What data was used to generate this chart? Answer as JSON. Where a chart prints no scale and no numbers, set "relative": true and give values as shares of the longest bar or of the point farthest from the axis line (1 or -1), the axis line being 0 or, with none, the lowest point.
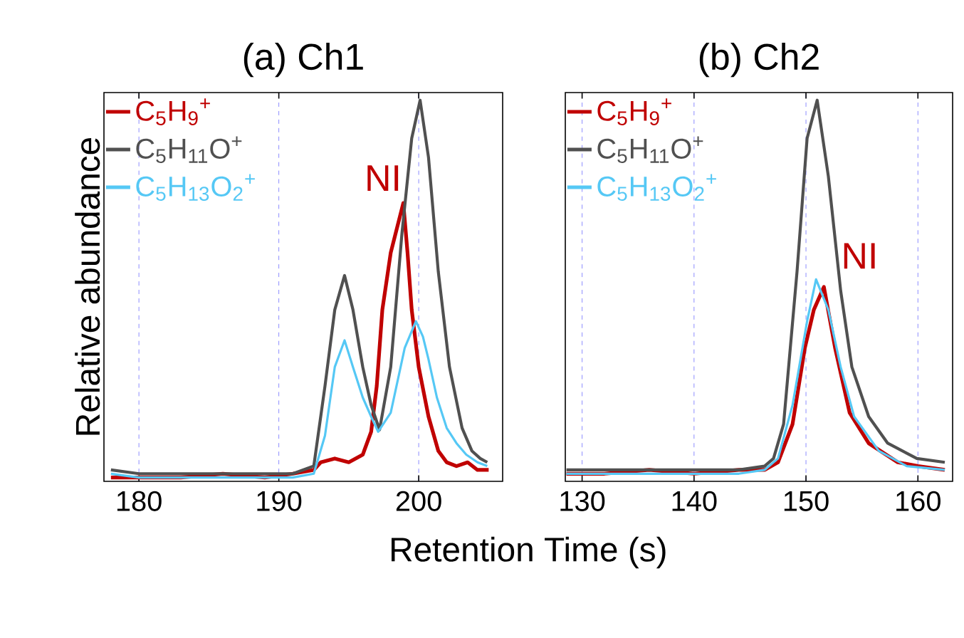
{
  "chart_data": [
    {
      "type": "line",
      "title": "(a) Ch1",
      "xlabel": "Retention Time (s)",
      "ylabel": "Relative abundance",
      "relative": true,
      "xlim": [
        177.5,
        206
      ],
      "xticks": [
        180,
        190,
        200
      ],
      "grid": "x",
      "legend": "top left",
      "tick_labels": "x",
      "annotations": [
        "NI"
      ],
      "series": [
        {
          "name": "C$_{5}$H$_{9}$$^{+}$",
          "color": "#c00000",
          "x": [
            178,
            180,
            183,
            186,
            189,
            191,
            192.5,
            193,
            194,
            195,
            196,
            196.6,
            197,
            197.4,
            198,
            198.9,
            199.2,
            199.5,
            200,
            200.7,
            201.4,
            202,
            202.7,
            203.5,
            204.2,
            205
          ],
          "values": [
            0.01,
            0.01,
            0.01,
            0.02,
            0.01,
            0.02,
            0.03,
            0.05,
            0.06,
            0.05,
            0.07,
            0.13,
            0.25,
            0.45,
            0.6,
            0.73,
            0.6,
            0.45,
            0.3,
            0.17,
            0.08,
            0.05,
            0.04,
            0.05,
            0.03,
            0.03
          ]
        },
        {
          "name": "C$_{5}$H$_{11}$O$^{+}$",
          "color": "#505050",
          "x": [
            178,
            180,
            183,
            186,
            189,
            191,
            192.5,
            193.3,
            194,
            194.7,
            195.3,
            196,
            196.6,
            197.2,
            198,
            198.8,
            199.5,
            200.1,
            200.7,
            201.4,
            202.2,
            203.1,
            203.8,
            204.4,
            204.9
          ],
          "values": [
            0.03,
            0.02,
            0.02,
            0.02,
            0.02,
            0.02,
            0.04,
            0.25,
            0.45,
            0.54,
            0.45,
            0.3,
            0.2,
            0.135,
            0.3,
            0.65,
            0.9,
            1.0,
            0.85,
            0.55,
            0.3,
            0.14,
            0.08,
            0.06,
            0.05
          ]
        },
        {
          "name": "C$_{5}$H$_{13}$O$_{2}$$^{+}$",
          "color": "#55c8f5",
          "x": [
            178,
            180,
            183,
            186,
            189,
            191,
            192.5,
            193.3,
            194,
            194.7,
            195.3,
            196,
            196.6,
            197.1,
            198,
            199,
            199.8,
            200.3,
            200.7,
            201.3,
            202,
            202.7,
            203.4,
            204.2,
            204.9
          ],
          "values": [
            0.02,
            0.01,
            0.01,
            0.01,
            0.01,
            0.01,
            0.02,
            0.12,
            0.3,
            0.37,
            0.3,
            0.22,
            0.17,
            0.13,
            0.18,
            0.35,
            0.42,
            0.38,
            0.32,
            0.22,
            0.14,
            0.1,
            0.07,
            0.05,
            0.04
          ]
        }
      ]
    },
    {
      "type": "line",
      "title": "(b) Ch2",
      "relative": true,
      "xlim": [
        128.5,
        163.1
      ],
      "xticks": [
        130,
        140,
        150,
        160
      ],
      "grid": "x",
      "legend": "top left",
      "tick_labels": "x",
      "annotations": [
        "NI"
      ],
      "series": [
        {
          "name": "C$_{5}$H$_{9}$$^{+}$",
          "color": "#c00000",
          "x": [
            128.6,
            132,
            136,
            140,
            144,
            146.3,
            147.5,
            148.8,
            149.9,
            150.7,
            151.6,
            152.6,
            153.9,
            155.6,
            158.2,
            160,
            162.4
          ],
          "values": [
            0.02,
            0.02,
            0.03,
            0.02,
            0.03,
            0.03,
            0.05,
            0.15,
            0.35,
            0.45,
            0.51,
            0.35,
            0.18,
            0.1,
            0.05,
            0.04,
            0.03
          ]
        },
        {
          "name": "C$_{5}$H$_{11}$O$^{+}$",
          "color": "#505050",
          "x": [
            128.6,
            132,
            136,
            140,
            144,
            146.3,
            147.1,
            148,
            149.2,
            150.1,
            151,
            152,
            153.1,
            154.1,
            155.6,
            157.3,
            159.9,
            162.4
          ],
          "values": [
            0.03,
            0.03,
            0.03,
            0.03,
            0.03,
            0.04,
            0.06,
            0.15,
            0.55,
            0.9,
            1.0,
            0.8,
            0.5,
            0.3,
            0.17,
            0.1,
            0.06,
            0.05
          ]
        },
        {
          "name": "C$_{5}$H$_{13}$O$_{2}$$^{+}$",
          "color": "#55c8f5",
          "x": [
            128.6,
            132,
            136,
            140,
            144,
            146.3,
            147.5,
            148.8,
            150.1,
            150.9,
            152,
            153.1,
            154.3,
            156.5,
            159,
            162.4
          ],
          "values": [
            0.02,
            0.02,
            0.02,
            0.02,
            0.02,
            0.03,
            0.06,
            0.2,
            0.42,
            0.53,
            0.45,
            0.3,
            0.17,
            0.08,
            0.04,
            0.03
          ]
        }
      ]
    }
  ]
}
